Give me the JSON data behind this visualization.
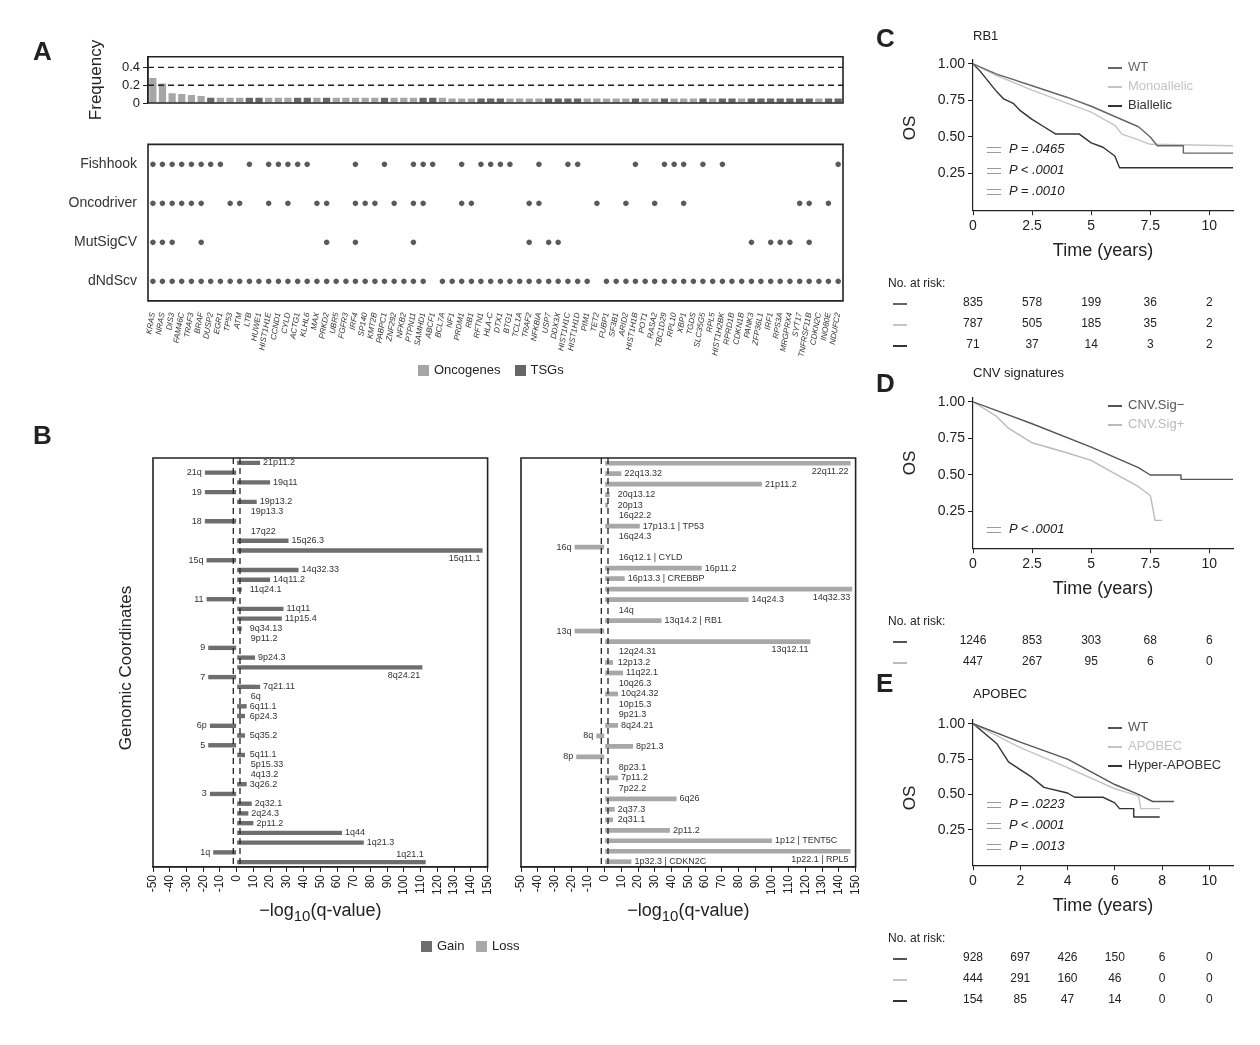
{
  "chart_data": [
    {
      "type": "bar",
      "ylabel": "Frequency",
      "stacked": true,
      "legend": "bottom",
      "tick_labels": "y",
      "ylim": [
        0,
        0.52
      ],
      "yticks": [
        0,
        0.2,
        0.4
      ],
      "annotations": [
        "A"
      ],
      "ref_lines": [
        {
          "axis": "y",
          "value": 0.4,
          "line_style": "dashed"
        },
        {
          "axis": "y",
          "value": 0.2,
          "line_style": "dashed"
        }
      ],
      "categories": [
        null,
        null,
        null,
        null,
        null,
        null,
        null,
        null,
        null,
        null,
        null,
        null,
        null,
        null,
        null,
        null,
        null,
        null,
        null,
        null,
        null,
        null,
        null,
        null,
        null,
        null,
        null,
        null,
        null,
        null,
        null,
        null,
        null,
        null,
        null,
        null,
        null,
        null,
        null,
        null,
        null,
        null,
        null,
        null,
        null,
        null,
        null,
        null,
        null,
        null,
        null,
        null,
        null,
        null,
        null,
        null,
        null,
        null,
        null,
        null,
        null,
        null,
        null,
        null,
        null,
        null,
        null,
        null,
        null,
        null,
        null,
        null
      ],
      "series": [
        {
          "name": "Oncogenes",
          "color": "#a6a6a6",
          "values": [
            0.28,
            0.22,
            0.11,
            0.1,
            0.09,
            0.08,
            null,
            0.06,
            0.06,
            0.06,
            null,
            null,
            0.06,
            0.06,
            0.06,
            null,
            null,
            0.06,
            null,
            0.06,
            0.06,
            0.06,
            0.06,
            0.06,
            null,
            0.06,
            0.06,
            0.06,
            null,
            null,
            0.06,
            0.05,
            0.05,
            0.05,
            null,
            null,
            null,
            0.05,
            0.05,
            0.05,
            0.05,
            null,
            null,
            null,
            null,
            0.05,
            0.05,
            0.05,
            0.05,
            0.05,
            null,
            0.05,
            0.05,
            null,
            0.05,
            0.05,
            0.05,
            null,
            0.05,
            null,
            null,
            0.05,
            null,
            null,
            null,
            null,
            null,
            null,
            null,
            0.05,
            null,
            null
          ]
        },
        {
          "name": "TSGs",
          "color": "#666666",
          "values": [
            null,
            null,
            null,
            null,
            null,
            null,
            0.06,
            null,
            null,
            null,
            0.06,
            0.06,
            null,
            null,
            null,
            0.06,
            0.06,
            null,
            0.06,
            null,
            null,
            null,
            null,
            null,
            0.06,
            null,
            null,
            null,
            0.06,
            0.06,
            null,
            null,
            null,
            null,
            0.05,
            0.05,
            0.05,
            null,
            null,
            null,
            null,
            0.05,
            0.05,
            0.05,
            0.05,
            null,
            null,
            null,
            null,
            null,
            0.05,
            null,
            null,
            0.05,
            null,
            null,
            null,
            0.05,
            null,
            0.05,
            0.05,
            null,
            0.05,
            0.05,
            0.05,
            0.05,
            0.05,
            0.05,
            0.05,
            null,
            0.05,
            0.05
          ]
        }
      ]
    },
    {
      "type": "other",
      "color": "#5a5a5a",
      "categories": [
        "KRAS",
        "NRAS",
        "DIS3",
        "FAM46C",
        "TRAF3",
        "BRAF",
        "DUSP2",
        "EGR1",
        "TP53",
        "ATM",
        "LTB",
        "HUWE1",
        "HIST1H1E",
        "CCND1",
        "CYLD",
        "ACTG1",
        "KLHL6",
        "MAX",
        "PRKD2",
        "UBR5",
        "FGFR3",
        "IRF4",
        "SP140",
        "KMT2B",
        "PABPC1",
        "ZNF292",
        "NFKB2",
        "PTPN11",
        "SAMHD1",
        "ABCF1",
        "BCL7A",
        "NF1",
        "PRDM1",
        "RB1",
        "RFTN1",
        "HLA-C",
        "DTX1",
        "BTG1",
        "TCL1A",
        "TRAF2",
        "NFKBIA",
        "USP7",
        "DDX3X",
        "HIST1H1C",
        "HIST1H1D",
        "PIM1",
        "TET2",
        "FUBP1",
        "SF3B1",
        "ARID2",
        "HIST1H1B",
        "POT1",
        "RASA2",
        "TBC1D29",
        "RPL10",
        "XBP1",
        "TGDS",
        "SLC35G5",
        "RPL5",
        "HIST1H2BK",
        "RPRD1B",
        "CDKN1B",
        "PANK3",
        "ZFP36L1",
        "IRF1",
        "RPS3A",
        "MRGPRX4",
        "SYT17",
        "TNFRSF11B",
        "CDKN2C",
        "INO80E",
        "NDUFC2"
      ],
      "y_categories": [
        "Fishhook",
        "Oncodriver",
        "MutSigCV",
        "dNdScv"
      ],
      "cell_labels": [
        [
          "●",
          "●",
          "●",
          "●",
          "●",
          "●",
          "●",
          "●",
          null,
          null,
          "●",
          null,
          "●",
          "●",
          "●",
          "●",
          "●",
          null,
          null,
          null,
          null,
          "●",
          null,
          null,
          "●",
          null,
          null,
          "●",
          "●",
          "●",
          null,
          null,
          "●",
          null,
          "●",
          "●",
          "●",
          "●",
          null,
          null,
          "●",
          null,
          null,
          "●",
          "●",
          null,
          null,
          null,
          null,
          null,
          "●",
          null,
          null,
          "●",
          "●",
          "●",
          null,
          "●",
          null,
          "●",
          null,
          null,
          null,
          null,
          null,
          null,
          null,
          null,
          null,
          null,
          null,
          "●"
        ],
        [
          "●",
          "●",
          "●",
          "●",
          "●",
          "●",
          null,
          null,
          "●",
          "●",
          null,
          null,
          "●",
          null,
          "●",
          null,
          null,
          "●",
          "●",
          null,
          null,
          "●",
          "●",
          "●",
          null,
          "●",
          null,
          "●",
          "●",
          null,
          null,
          null,
          "●",
          "●",
          null,
          null,
          null,
          null,
          null,
          "●",
          "●",
          null,
          null,
          null,
          null,
          null,
          "●",
          null,
          null,
          "●",
          null,
          null,
          "●",
          null,
          null,
          "●",
          null,
          null,
          null,
          null,
          null,
          null,
          null,
          null,
          null,
          null,
          null,
          "●",
          "●",
          null,
          "●",
          null
        ],
        [
          "●",
          "●",
          "●",
          null,
          null,
          "●",
          null,
          null,
          null,
          null,
          null,
          null,
          null,
          null,
          null,
          null,
          null,
          null,
          "●",
          null,
          null,
          "●",
          null,
          null,
          null,
          null,
          null,
          "●",
          null,
          null,
          null,
          null,
          null,
          null,
          null,
          null,
          null,
          null,
          null,
          "●",
          null,
          "●",
          "●",
          null,
          null,
          null,
          null,
          null,
          null,
          null,
          null,
          null,
          null,
          null,
          null,
          null,
          null,
          null,
          null,
          null,
          null,
          null,
          "●",
          null,
          "●",
          "●",
          "●",
          null,
          "●",
          null,
          null,
          null
        ],
        [
          "●",
          "●",
          "●",
          "●",
          "●",
          "●",
          "●",
          "●",
          "●",
          "●",
          "●",
          "●",
          "●",
          "●",
          "●",
          "●",
          "●",
          "●",
          "●",
          "●",
          "●",
          "●",
          "●",
          "●",
          "●",
          "●",
          "●",
          "●",
          "●",
          null,
          "●",
          "●",
          "●",
          "●",
          "●",
          "●",
          "●",
          "●",
          "●",
          "●",
          "●",
          "●",
          "●",
          "●",
          "●",
          "●",
          null,
          "●",
          "●",
          "●",
          "●",
          "●",
          "●",
          "●",
          "●",
          "●",
          "●",
          "●",
          "●",
          "●",
          "●",
          "●",
          "●",
          "●",
          "●",
          "●",
          "●",
          "●",
          "●",
          "●",
          "●",
          "●"
        ]
      ],
      "legend": false
    },
    {
      "type": "bar",
      "orientation": "horizontal",
      "xlabel": "−log$_{10}$(q-value)",
      "ylabel": "Genomic Coordinates",
      "legend": "bottom",
      "tick_labels": "x",
      "annotations": [
        "B"
      ],
      "xlim": [
        -50,
        150
      ],
      "xticks": [
        -50,
        -40,
        -30,
        -20,
        -10,
        0,
        10,
        20,
        30,
        40,
        50,
        60,
        70,
        80,
        90,
        100,
        110,
        120,
        130,
        140,
        150
      ],
      "ref_lines": [
        {
          "axis": "x",
          "value": -2,
          "line_style": "dashed"
        },
        {
          "axis": "x",
          "value": 2,
          "line_style": "dashed"
        }
      ],
      "categories": [
        "21p11.2",
        "21q",
        "19q11",
        "19",
        "19p13.2",
        "19p13.3",
        "18",
        "17q22",
        "15q26.3",
        "15q11.1",
        "15q",
        "14q32.33",
        "14q11.2",
        "11q24.1",
        "11",
        "11q11",
        "11p15.4",
        "9q34.13",
        "9p11.2",
        "9",
        "9p24.3",
        "8q24.21",
        "7",
        "7q21.11",
        "6q",
        "6q11.1",
        "6p24.3",
        "6p",
        "5q35.2",
        "5",
        "5q11.1",
        "5p15.33",
        "4q13.2",
        "3q26.2",
        "3",
        "2q32.1",
        "2q24.3",
        "2p11.2",
        "1q44",
        "1q21.3",
        "1q",
        "1q21.1"
      ],
      "series": [
        {
          "name": "Gain",
          "color": "#6e6e6e",
          "values": [
            14,
            -19,
            20,
            -19,
            12,
            null,
            -19,
            null,
            31,
            147,
            -18,
            37,
            20,
            3,
            -18,
            28,
            27,
            3,
            null,
            -17,
            11,
            111,
            -17,
            14,
            null,
            6,
            5,
            -16,
            5,
            -17,
            5,
            null,
            null,
            6,
            -16,
            9,
            7,
            10,
            63,
            76,
            -14,
            113
          ]
        }
      ]
    },
    {
      "type": "bar",
      "orientation": "horizontal",
      "xlabel": "−log$_{10}$(q-value)",
      "legend": "bottom",
      "tick_labels": "x",
      "xlim": [
        -50,
        150
      ],
      "xticks": [
        -50,
        -40,
        -30,
        -20,
        -10,
        0,
        10,
        20,
        30,
        40,
        50,
        60,
        70,
        80,
        90,
        100,
        110,
        120,
        130,
        140,
        150
      ],
      "ref_lines": [
        {
          "axis": "x",
          "value": -2,
          "line_style": "dashed"
        },
        {
          "axis": "x",
          "value": 2,
          "line_style": "dashed"
        }
      ],
      "categories": [
        "22q11.22",
        "22q13.32",
        "21p11.2",
        "20q13.12",
        "20p13",
        "16q22.2",
        "17p13.1 | TP53",
        "16q24.3",
        "16q",
        "16q12.1 | CYLD",
        "16p11.2",
        "16p13.3 | CREBBP",
        "14q32.33",
        "14q24.3",
        "14q",
        "13q14.2 | RB1",
        "13q",
        "13q12.11",
        "12q24.31",
        "12p13.2",
        "11q22.1",
        "10q26.3",
        "10q24.32",
        "10p15.3",
        "9p21.3",
        "8q24.21",
        "8q",
        "8p21.3",
        "8p",
        "8p23.1",
        "7p11.2",
        "7p22.2",
        "6q26",
        "2q37.3",
        "2q31.1",
        "2p11.2",
        "1p12 | TENT5C",
        "1p22.1 | RPL5",
        "1p32.3 | CDKN2C"
      ],
      "series": [
        {
          "name": "Loss",
          "color": "#a8a8a8",
          "values": [
            147,
            10,
            94,
            3,
            2,
            null,
            21,
            null,
            -18,
            null,
            58,
            12,
            148,
            86,
            null,
            34,
            -18,
            123,
            null,
            5,
            11,
            null,
            8,
            null,
            null,
            8,
            -5,
            17,
            -17,
            null,
            8,
            null,
            43,
            6,
            5,
            39,
            100,
            147,
            16
          ]
        }
      ]
    },
    {
      "type": "line",
      "title": "RB1",
      "xlabel": "Time (years)",
      "ylabel": "OS",
      "legend": "top right",
      "xlim": [
        0,
        11
      ],
      "xticks": [
        0,
        2.5,
        5,
        7.5,
        10
      ],
      "ylim": [
        0,
        1.03
      ],
      "yticks": [
        {
          "value": 0.25,
          "label": "0.25"
        },
        {
          "value": 0.5,
          "label": "0.50"
        },
        {
          "value": 0.75,
          "label": "0.75"
        },
        {
          "value": 1,
          "label": "1.00"
        }
      ],
      "annotations": [
        "C",
        "P = .0465",
        "P < .0001",
        "P = .0010",
        "No. at risk:",
        "835 578 199 36 2",
        "787 505 185 35 2",
        "71 37 14 3 2"
      ],
      "series": [
        {
          "name": "WT",
          "color": "#666666",
          "x": [
            0,
            1,
            2.5,
            4,
            5,
            6,
            7,
            7.5,
            7.8,
            8.9,
            8.9,
            11
          ],
          "values": [
            1,
            0.93,
            0.85,
            0.77,
            0.71,
            0.64,
            0.57,
            0.5,
            0.44,
            0.44,
            0.39,
            0.39
          ]
        },
        {
          "name": "Monoallelic",
          "color": "#c4c4c4",
          "x": [
            0,
            1,
            2.5,
            4,
            5,
            6,
            6.3,
            7,
            7.5,
            11
          ],
          "values": [
            1,
            0.92,
            0.82,
            0.73,
            0.67,
            0.58,
            0.52,
            0.48,
            0.45,
            0.44
          ]
        },
        {
          "name": "Biallelic",
          "color": "#333333",
          "x": [
            0,
            0.3,
            0.7,
            1,
            1.3,
            1.7,
            2,
            2.5,
            3,
            3.5,
            4.5,
            5,
            5.5,
            6,
            6.2,
            11
          ],
          "values": [
            1,
            0.95,
            0.87,
            0.81,
            0.76,
            0.73,
            0.68,
            0.62,
            0.57,
            0.52,
            0.52,
            0.46,
            0.43,
            0.37,
            0.29,
            0.29
          ]
        }
      ]
    },
    {
      "type": "line",
      "title": "CNV signatures",
      "xlabel": "Time (years)",
      "ylabel": "OS",
      "legend": "top right",
      "xlim": [
        0,
        11
      ],
      "xticks": [
        0,
        2.5,
        5,
        7.5,
        10
      ],
      "ylim": [
        0,
        1.03
      ],
      "yticks": [
        {
          "value": 0.25,
          "label": "0.25"
        },
        {
          "value": 0.5,
          "label": "0.50"
        },
        {
          "value": 0.75,
          "label": "0.75"
        },
        {
          "value": 1,
          "label": "1.00"
        }
      ],
      "annotations": [
        "D",
        "P < .0001",
        "No. at risk:",
        "1246 853 303 68 6",
        "447 267 95 6 0"
      ],
      "series": [
        {
          "name": "CNV.Sig−",
          "color": "#555555",
          "x": [
            0,
            2.5,
            5,
            6,
            7,
            7.5,
            8.8,
            8.8,
            11
          ],
          "values": [
            1,
            0.85,
            0.69,
            0.62,
            0.55,
            0.5,
            0.5,
            0.47,
            0.47
          ]
        },
        {
          "name": "CNV.Sig+",
          "color": "#bbbbbb",
          "x": [
            0,
            1,
            1.5,
            2.5,
            4,
            5,
            6,
            7,
            7.5,
            7.6,
            7.7,
            8
          ],
          "values": [
            1,
            0.9,
            0.82,
            0.72,
            0.65,
            0.6,
            0.51,
            0.42,
            0.36,
            0.28,
            0.19,
            0.19
          ]
        }
      ]
    },
    {
      "type": "line",
      "title": "APOBEC",
      "xlabel": "Time (years)",
      "ylabel": "OS",
      "legend": "top right",
      "xlim": [
        0,
        11
      ],
      "xticks": [
        0,
        2,
        4,
        6,
        8,
        10
      ],
      "ylim": [
        0,
        1.03
      ],
      "yticks": [
        {
          "value": 0.25,
          "label": "0.25"
        },
        {
          "value": 0.5,
          "label": "0.50"
        },
        {
          "value": 0.75,
          "label": "0.75"
        },
        {
          "value": 1,
          "label": "1.00"
        }
      ],
      "annotations": [
        "E",
        "P = .0223",
        "P < .0001",
        "P = .0013",
        "No. at risk:",
        "928 697 426 150 6 0",
        "444 291 160 46 0 0",
        "154 85 47 14 0 0"
      ],
      "series": [
        {
          "name": "WT",
          "color": "#555555",
          "x": [
            0,
            2,
            4,
            5,
            6,
            7,
            7.6,
            8.5
          ],
          "values": [
            1,
            0.87,
            0.75,
            0.66,
            0.57,
            0.5,
            0.45,
            0.45
          ]
        },
        {
          "name": "APOBEC",
          "color": "#c4c4c4",
          "x": [
            0,
            2,
            4,
            6,
            7,
            7.1,
            7.9
          ],
          "values": [
            1,
            0.83,
            0.69,
            0.54,
            0.49,
            0.4,
            0.4
          ]
        },
        {
          "name": "Hyper-APOBEC",
          "color": "#333333",
          "x": [
            0,
            1,
            1.5,
            2.5,
            3,
            4,
            4.3,
            5.5,
            6,
            6.2,
            6.8,
            6.8,
            7.9
          ],
          "values": [
            1,
            0.86,
            0.73,
            0.62,
            0.55,
            0.51,
            0.48,
            0.48,
            0.44,
            0.4,
            0.4,
            0.34,
            0.34
          ]
        }
      ]
    }
  ]
}
